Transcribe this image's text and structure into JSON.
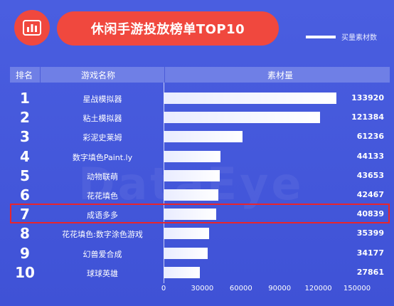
{
  "title": "休闲手游投放榜单TOP10",
  "legend_label": "买量素材数",
  "header": {
    "rank": "排名",
    "name": "游戏名称",
    "value": "素材量"
  },
  "watermark": "DataEye",
  "highlight_rank": 7,
  "colors": {
    "background": "#4257da",
    "accent": "#f0483e",
    "highlight": "#e8252c",
    "bar": "#ffffff"
  },
  "chart_data": {
    "type": "bar",
    "orientation": "horizontal",
    "title": "休闲手游投放榜单TOP10",
    "categories": [
      "星战模拟器",
      "粘土模拟器",
      "彩泥史莱姆",
      "数字填色Paint.ly",
      "动物联萌",
      "花花填色",
      "成语多多",
      "花花填色:数字涂色游戏",
      "幻兽爱合成",
      "球球英雄"
    ],
    "ranks": [
      "1",
      "2",
      "3",
      "4",
      "5",
      "6",
      "7",
      "8",
      "9",
      "10"
    ],
    "series": [
      {
        "name": "买量素材数",
        "values": [
          133920,
          121384,
          61236,
          44133,
          43653,
          42467,
          40839,
          35399,
          34177,
          27861
        ]
      }
    ],
    "xlim": [
      0,
      150000
    ],
    "xticks": [
      0,
      30000,
      60000,
      90000,
      120000,
      150000
    ],
    "legend_position": "top-right",
    "grid": false
  }
}
